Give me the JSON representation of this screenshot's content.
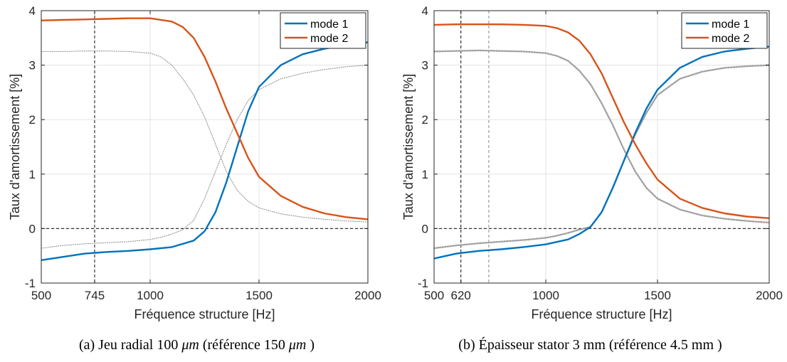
{
  "chart_data": [
    {
      "type": "line",
      "title": "",
      "xlabel": "Fréquence structure [Hz]",
      "ylabel": "Taux d'amortissement [%]",
      "xlim": [
        500,
        2000
      ],
      "ylim": [
        -1,
        4
      ],
      "xticks": [
        500,
        745,
        1000,
        1500,
        2000
      ],
      "xtick_labels": [
        "500",
        "745",
        "1000",
        "1500",
        "2000"
      ],
      "yticks": [
        -1,
        0,
        1,
        2,
        3,
        4
      ],
      "ytick_labels": [
        "-1",
        "0",
        "1",
        "2",
        "3",
        "4"
      ],
      "grid": true,
      "legend_position": "top-right",
      "vertical_reference_lines": [
        {
          "x": 745,
          "color": "#333333"
        }
      ],
      "horizontal_reference_lines": [
        {
          "y": 0,
          "color": "#333333"
        }
      ],
      "series": [
        {
          "name": "mode 1",
          "color": "#0072BD",
          "x": [
            500,
            600,
            700,
            800,
            900,
            1000,
            1100,
            1200,
            1250,
            1300,
            1350,
            1400,
            1450,
            1500,
            1600,
            1700,
            1800,
            1900,
            2000
          ],
          "y": [
            -0.58,
            -0.52,
            -0.46,
            -0.43,
            -0.41,
            -0.38,
            -0.34,
            -0.22,
            -0.05,
            0.3,
            0.85,
            1.5,
            2.15,
            2.6,
            3.0,
            3.2,
            3.3,
            3.37,
            3.42
          ]
        },
        {
          "name": "mode 2",
          "color": "#D95319",
          "x": [
            500,
            600,
            700,
            800,
            900,
            1000,
            1100,
            1150,
            1200,
            1250,
            1300,
            1350,
            1400,
            1450,
            1500,
            1600,
            1700,
            1800,
            1900,
            2000
          ],
          "y": [
            3.82,
            3.83,
            3.84,
            3.85,
            3.86,
            3.86,
            3.8,
            3.7,
            3.5,
            3.15,
            2.7,
            2.2,
            1.75,
            1.3,
            0.95,
            0.6,
            0.4,
            0.28,
            0.21,
            0.17
          ]
        },
        {
          "name": "",
          "color": "#8c8c8c",
          "x": [
            500,
            600,
            700,
            800,
            900,
            1000,
            1050,
            1100,
            1150,
            1200,
            1250,
            1300,
            1350,
            1400,
            1450,
            1500,
            1600,
            1700,
            1800,
            1900,
            2000
          ],
          "y": [
            3.25,
            3.25,
            3.26,
            3.26,
            3.25,
            3.22,
            3.15,
            3.0,
            2.75,
            2.45,
            2.05,
            1.55,
            1.05,
            0.7,
            0.5,
            0.38,
            0.27,
            0.21,
            0.17,
            0.14,
            0.12
          ]
        },
        {
          "name": "",
          "color": "#8c8c8c",
          "x": [
            500,
            600,
            700,
            800,
            900,
            1000,
            1050,
            1100,
            1150,
            1200,
            1250,
            1300,
            1350,
            1400,
            1450,
            1500,
            1600,
            1700,
            1800,
            1900,
            2000
          ],
          "y": [
            -0.36,
            -0.31,
            -0.28,
            -0.26,
            -0.24,
            -0.2,
            -0.16,
            -0.1,
            -0.02,
            0.15,
            0.55,
            1.05,
            1.55,
            2.0,
            2.35,
            2.55,
            2.75,
            2.85,
            2.92,
            2.97,
            3.0
          ]
        }
      ]
    },
    {
      "type": "line",
      "title": "",
      "xlabel": "Fréquence structure [Hz]",
      "ylabel": "Taux d'amortissement [%]",
      "xlim": [
        500,
        2000
      ],
      "ylim": [
        -1,
        4
      ],
      "xticks": [
        500,
        620,
        1000,
        1500,
        2000
      ],
      "xtick_labels": [
        "500",
        "620",
        "1000",
        "1500",
        "2000"
      ],
      "yticks": [
        -1,
        0,
        1,
        2,
        3,
        4
      ],
      "ytick_labels": [
        "-1",
        "0",
        "1",
        "2",
        "3",
        "4"
      ],
      "grid": true,
      "legend_position": "top-right",
      "vertical_reference_lines": [
        {
          "x": 620,
          "color": "#333333"
        },
        {
          "x": 745,
          "color": "#9a9a9a"
        }
      ],
      "horizontal_reference_lines": [
        {
          "y": 0,
          "color": "#333333"
        }
      ],
      "series": [
        {
          "name": "mode 1",
          "color": "#0072BD",
          "x": [
            500,
            600,
            700,
            800,
            900,
            1000,
            1100,
            1150,
            1200,
            1250,
            1300,
            1350,
            1400,
            1450,
            1500,
            1600,
            1700,
            1800,
            1900,
            2000
          ],
          "y": [
            -0.55,
            -0.46,
            -0.41,
            -0.38,
            -0.34,
            -0.29,
            -0.2,
            -0.1,
            0.03,
            0.3,
            0.75,
            1.25,
            1.75,
            2.2,
            2.55,
            2.95,
            3.15,
            3.25,
            3.3,
            3.34
          ]
        },
        {
          "name": "mode 2",
          "color": "#D95319",
          "x": [
            500,
            600,
            700,
            800,
            900,
            1000,
            1050,
            1100,
            1150,
            1200,
            1250,
            1300,
            1350,
            1400,
            1450,
            1500,
            1600,
            1700,
            1800,
            1900,
            2000
          ],
          "y": [
            3.74,
            3.75,
            3.75,
            3.75,
            3.74,
            3.72,
            3.68,
            3.6,
            3.45,
            3.2,
            2.85,
            2.4,
            1.95,
            1.55,
            1.2,
            0.9,
            0.55,
            0.38,
            0.28,
            0.22,
            0.19
          ]
        },
        {
          "name": "",
          "color": "#a0a0a0",
          "x": [
            500,
            600,
            700,
            800,
            900,
            1000,
            1050,
            1100,
            1150,
            1200,
            1250,
            1300,
            1350,
            1400,
            1450,
            1500,
            1600,
            1700,
            1800,
            1900,
            2000
          ],
          "y": [
            3.25,
            3.26,
            3.27,
            3.26,
            3.25,
            3.22,
            3.17,
            3.08,
            2.9,
            2.65,
            2.3,
            1.9,
            1.45,
            1.05,
            0.75,
            0.55,
            0.35,
            0.24,
            0.18,
            0.14,
            0.11
          ]
        },
        {
          "name": "",
          "color": "#a0a0a0",
          "x": [
            500,
            600,
            700,
            800,
            900,
            1000,
            1050,
            1100,
            1150,
            1200,
            1250,
            1300,
            1350,
            1400,
            1450,
            1500,
            1600,
            1700,
            1800,
            1900,
            2000
          ],
          "y": [
            -0.36,
            -0.31,
            -0.27,
            -0.24,
            -0.21,
            -0.17,
            -0.13,
            -0.08,
            -0.02,
            0.03,
            0.3,
            0.75,
            1.25,
            1.72,
            2.12,
            2.45,
            2.75,
            2.88,
            2.95,
            2.98,
            3.0
          ]
        }
      ]
    }
  ],
  "captions": [
    {
      "pre": "(a) Jeu radial 100 ",
      "mu1": "μm",
      "mid": " (référence 150 ",
      "mu2": "μm",
      "post": " )"
    },
    {
      "text": "(b) Épaisseur stator 3 mm (référence 4.5 mm )"
    }
  ]
}
